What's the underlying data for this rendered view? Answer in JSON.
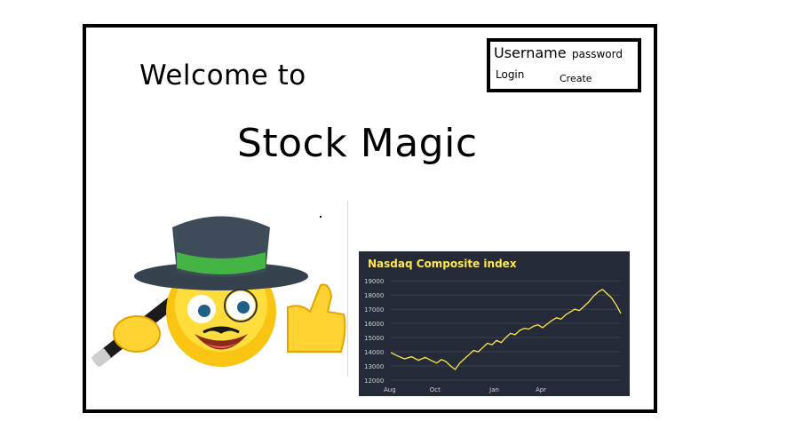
{
  "header": {
    "welcome_text": "Welcome to",
    "app_title": "Stock Magic"
  },
  "login": {
    "username_label": "Username",
    "password_label": "password",
    "login_label": "Login",
    "create_label": "Create"
  },
  "mascot": {
    "icon": "magician-emoji-icon"
  },
  "chart_data": {
    "type": "line",
    "title": "Nasdaq Composite index",
    "ylim": [
      12000,
      19200
    ],
    "yticks": [
      "19000",
      "18000",
      "17000",
      "16000",
      "15000",
      "14000",
      "13000",
      "12000"
    ],
    "yvalues": [
      19000,
      18000,
      17000,
      16000,
      15000,
      14000,
      13000,
      12000
    ],
    "xticks": [
      "Aug",
      "Oct",
      "Jan",
      "Apr"
    ],
    "xtick_positions": [
      0,
      0.2,
      0.46,
      0.66
    ],
    "series": [
      {
        "color": "#ffe74a",
        "x": [
          0,
          0.03,
          0.06,
          0.09,
          0.12,
          0.15,
          0.18,
          0.2,
          0.22,
          0.24,
          0.26,
          0.28,
          0.3,
          0.32,
          0.34,
          0.36,
          0.38,
          0.4,
          0.42,
          0.44,
          0.46,
          0.48,
          0.5,
          0.52,
          0.54,
          0.56,
          0.58,
          0.6,
          0.62,
          0.64,
          0.66,
          0.68,
          0.7,
          0.72,
          0.74,
          0.76,
          0.78,
          0.8,
          0.82,
          0.84,
          0.86,
          0.88,
          0.9,
          0.92,
          0.94,
          0.96,
          0.98,
          1.0
        ],
        "values": [
          13950,
          13700,
          13500,
          13650,
          13400,
          13600,
          13350,
          13200,
          13450,
          13300,
          13000,
          12750,
          13200,
          13500,
          13800,
          14100,
          14000,
          14300,
          14600,
          14500,
          14800,
          14650,
          15000,
          15300,
          15200,
          15500,
          15650,
          15600,
          15800,
          15900,
          15700,
          15950,
          16200,
          16400,
          16300,
          16600,
          16800,
          17000,
          16900,
          17200,
          17500,
          17900,
          18200,
          18400,
          18100,
          17800,
          17300,
          16700
        ]
      }
    ]
  }
}
